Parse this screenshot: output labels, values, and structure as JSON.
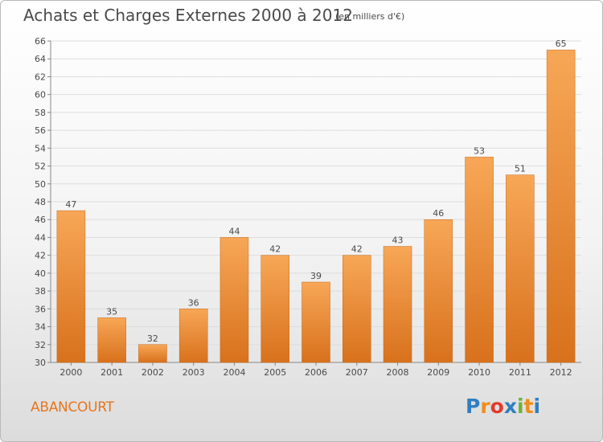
{
  "header": {
    "title": "Achats et Charges Externes 2000 à 2012",
    "subtitle": "(en milliers d'€)"
  },
  "footer": {
    "commune": "ABANCOURT",
    "logo_letters": [
      "P",
      "r",
      "o",
      "x",
      "i",
      "t",
      "i"
    ],
    "logo_colors": [
      "#2f7fc1",
      "#f18d1a",
      "#e23b2a",
      "#2f7fc1",
      "#6cb23d",
      "#f18d1a",
      "#2f7fc1"
    ]
  },
  "chart_data": {
    "type": "bar",
    "categories": [
      "2000",
      "2001",
      "2002",
      "2003",
      "2004",
      "2005",
      "2006",
      "2007",
      "2008",
      "2009",
      "2010",
      "2011",
      "2012"
    ],
    "values": [
      47,
      35,
      32,
      36,
      44,
      42,
      39,
      42,
      43,
      46,
      53,
      51,
      65
    ],
    "ylim": [
      30,
      66
    ],
    "yticks": [
      30,
      32,
      34,
      36,
      38,
      40,
      42,
      44,
      46,
      48,
      50,
      52,
      54,
      56,
      58,
      60,
      62,
      64,
      66
    ],
    "bar_color_top": "#f7a757",
    "bar_color_bottom": "#d8711c",
    "grid": true,
    "legend": "none"
  }
}
